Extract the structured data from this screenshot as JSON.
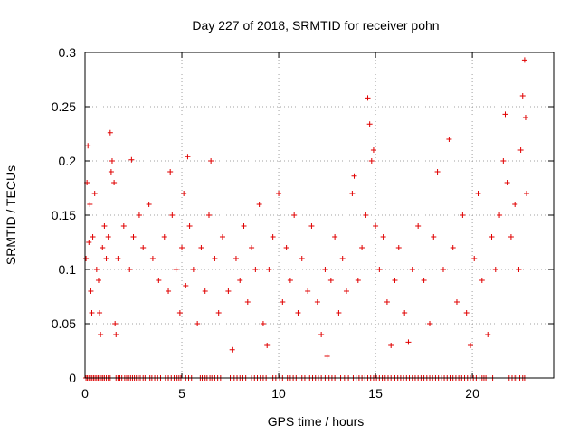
{
  "chart_data": {
    "type": "scatter",
    "title": "Day 227 of 2018, SRMTID for receiver pohn",
    "xlabel": "GPS time / hours",
    "ylabel": "SRMTID / TECUs",
    "xlim": [
      0,
      24.2
    ],
    "ylim": [
      0,
      0.3
    ],
    "xticks": [
      0,
      5,
      10,
      15,
      20
    ],
    "yticks": [
      0,
      0.05,
      0.1,
      0.15,
      0.2,
      0.25,
      0.3
    ],
    "ytick_labels": [
      "0",
      "0.05",
      "0.1",
      "0.15",
      "0.2",
      "0.25",
      "0.3"
    ],
    "grid": true,
    "marker": "+",
    "color": "#e00000",
    "series": [
      {
        "name": "SRMTID",
        "points": [
          [
            0.05,
            0.11
          ],
          [
            0.1,
            0.18
          ],
          [
            0.15,
            0.214
          ],
          [
            0.2,
            0.125
          ],
          [
            0.25,
            0.16
          ],
          [
            0.3,
            0.08
          ],
          [
            0.35,
            0.06
          ],
          [
            0.4,
            0.13
          ],
          [
            0.5,
            0.17
          ],
          [
            0.6,
            0.1
          ],
          [
            0.7,
            0.09
          ],
          [
            0.75,
            0.06
          ],
          [
            0.8,
            0.04
          ],
          [
            0.9,
            0.12
          ],
          [
            1.0,
            0.14
          ],
          [
            1.1,
            0.11
          ],
          [
            1.2,
            0.13
          ],
          [
            1.3,
            0.226
          ],
          [
            1.35,
            0.19
          ],
          [
            1.4,
            0.2
          ],
          [
            1.5,
            0.18
          ],
          [
            1.55,
            0.05
          ],
          [
            1.6,
            0.04
          ],
          [
            1.7,
            0.11
          ],
          [
            2.0,
            0.14
          ],
          [
            2.3,
            0.1
          ],
          [
            2.4,
            0.201
          ],
          [
            2.5,
            0.13
          ],
          [
            2.8,
            0.15
          ],
          [
            3.0,
            0.12
          ],
          [
            3.3,
            0.16
          ],
          [
            3.5,
            0.11
          ],
          [
            3.8,
            0.09
          ],
          [
            4.1,
            0.13
          ],
          [
            4.3,
            0.08
          ],
          [
            4.4,
            0.19
          ],
          [
            4.5,
            0.15
          ],
          [
            4.7,
            0.1
          ],
          [
            4.9,
            0.06
          ],
          [
            5.0,
            0.12
          ],
          [
            5.1,
            0.17
          ],
          [
            5.2,
            0.085
          ],
          [
            5.3,
            0.204
          ],
          [
            5.4,
            0.14
          ],
          [
            5.6,
            0.1
          ],
          [
            5.8,
            0.05
          ],
          [
            6.0,
            0.12
          ],
          [
            6.2,
            0.08
          ],
          [
            6.4,
            0.15
          ],
          [
            6.5,
            0.2
          ],
          [
            6.7,
            0.11
          ],
          [
            6.9,
            0.06
          ],
          [
            7.1,
            0.13
          ],
          [
            7.4,
            0.08
          ],
          [
            7.6,
            0.026
          ],
          [
            7.8,
            0.11
          ],
          [
            8.0,
            0.09
          ],
          [
            8.2,
            0.14
          ],
          [
            8.4,
            0.07
          ],
          [
            8.6,
            0.12
          ],
          [
            8.8,
            0.1
          ],
          [
            9.0,
            0.16
          ],
          [
            9.2,
            0.05
          ],
          [
            9.4,
            0.03
          ],
          [
            9.5,
            0.1
          ],
          [
            9.7,
            0.13
          ],
          [
            10.0,
            0.17
          ],
          [
            10.2,
            0.07
          ],
          [
            10.4,
            0.12
          ],
          [
            10.6,
            0.09
          ],
          [
            10.8,
            0.15
          ],
          [
            11.0,
            0.06
          ],
          [
            11.2,
            0.11
          ],
          [
            11.5,
            0.08
          ],
          [
            11.7,
            0.14
          ],
          [
            12.0,
            0.07
          ],
          [
            12.2,
            0.04
          ],
          [
            12.4,
            0.1
          ],
          [
            12.5,
            0.02
          ],
          [
            12.7,
            0.09
          ],
          [
            12.9,
            0.13
          ],
          [
            13.1,
            0.06
          ],
          [
            13.3,
            0.11
          ],
          [
            13.5,
            0.08
          ],
          [
            13.8,
            0.17
          ],
          [
            13.9,
            0.186
          ],
          [
            14.1,
            0.09
          ],
          [
            14.3,
            0.12
          ],
          [
            14.5,
            0.15
          ],
          [
            14.6,
            0.258
          ],
          [
            14.7,
            0.234
          ],
          [
            14.8,
            0.2
          ],
          [
            14.9,
            0.21
          ],
          [
            15.0,
            0.14
          ],
          [
            15.2,
            0.1
          ],
          [
            15.4,
            0.13
          ],
          [
            15.6,
            0.07
          ],
          [
            15.8,
            0.03
          ],
          [
            16.0,
            0.09
          ],
          [
            16.2,
            0.12
          ],
          [
            16.5,
            0.06
          ],
          [
            16.7,
            0.033
          ],
          [
            16.9,
            0.1
          ],
          [
            17.2,
            0.14
          ],
          [
            17.5,
            0.09
          ],
          [
            17.8,
            0.05
          ],
          [
            18.0,
            0.13
          ],
          [
            18.2,
            0.19
          ],
          [
            18.5,
            0.1
          ],
          [
            18.8,
            0.22
          ],
          [
            19.0,
            0.12
          ],
          [
            19.2,
            0.07
          ],
          [
            19.5,
            0.15
          ],
          [
            19.7,
            0.06
          ],
          [
            19.9,
            0.03
          ],
          [
            20.1,
            0.11
          ],
          [
            20.3,
            0.17
          ],
          [
            20.5,
            0.09
          ],
          [
            20.8,
            0.04
          ],
          [
            21.0,
            0.13
          ],
          [
            21.2,
            0.1
          ],
          [
            21.4,
            0.15
          ],
          [
            21.6,
            0.2
          ],
          [
            21.7,
            0.243
          ],
          [
            21.8,
            0.18
          ],
          [
            22.0,
            0.13
          ],
          [
            22.2,
            0.16
          ],
          [
            22.4,
            0.1
          ],
          [
            22.5,
            0.21
          ],
          [
            22.6,
            0.26
          ],
          [
            22.7,
            0.293
          ],
          [
            22.75,
            0.24
          ],
          [
            22.8,
            0.17
          ]
        ],
        "zero_points_x": [
          0.05,
          0.12,
          0.2,
          0.28,
          0.36,
          0.44,
          0.52,
          0.6,
          0.68,
          0.76,
          0.84,
          0.92,
          1.0,
          1.1,
          1.2,
          1.3,
          1.6,
          1.7,
          1.8,
          1.9,
          2.05,
          2.15,
          2.25,
          2.35,
          2.45,
          2.55,
          2.65,
          2.75,
          2.85,
          3.0,
          3.1,
          3.2,
          3.35,
          3.45,
          3.6,
          3.75,
          3.9,
          4.15,
          4.3,
          4.45,
          4.6,
          4.75,
          4.85,
          4.95,
          5.2,
          5.35,
          5.5,
          5.95,
          6.05,
          6.2,
          6.3,
          6.45,
          6.55,
          6.7,
          6.85,
          7.0,
          7.5,
          7.7,
          7.85,
          8.0,
          8.15,
          8.3,
          8.6,
          8.75,
          8.9,
          9.05,
          9.2,
          9.35,
          9.6,
          9.7,
          9.85,
          10.05,
          10.2,
          10.45,
          10.6,
          10.75,
          10.9,
          11.05,
          11.2,
          11.35,
          11.6,
          11.75,
          11.9,
          12.05,
          12.2,
          12.4,
          12.6,
          12.75,
          12.9,
          13.2,
          13.4,
          13.6,
          13.85,
          14.0,
          14.15,
          14.3,
          14.45,
          14.6,
          14.75,
          14.9,
          15.05,
          15.2,
          15.35,
          15.5,
          15.65,
          15.8,
          16.0,
          16.15,
          16.3,
          16.45,
          16.6,
          16.75,
          16.9,
          17.05,
          17.2,
          17.35,
          17.5,
          17.65,
          17.8,
          17.95,
          18.1,
          18.25,
          18.4,
          18.55,
          18.7,
          18.85,
          19.0,
          19.15,
          19.3,
          19.45,
          19.6,
          19.75,
          19.9,
          20.05,
          20.2,
          20.35,
          20.5,
          20.6,
          20.7,
          21.05,
          21.9,
          22.05,
          22.2,
          22.3,
          22.45,
          22.6,
          22.7
        ]
      }
    ]
  }
}
